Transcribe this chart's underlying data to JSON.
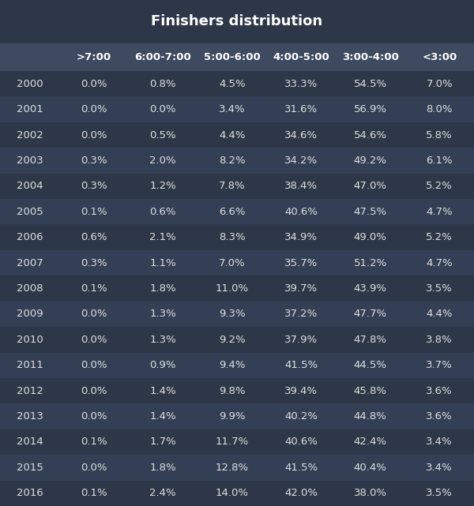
{
  "title": "Finishers distribution",
  "columns": [
    ">7:00",
    "6:00-7:00",
    "5:00-6:00",
    "4:00-5:00",
    "3:00-4:00",
    "<3:00"
  ],
  "rows": [
    {
      "year": 2000,
      "values": [
        "0.0%",
        "0.8%",
        "4.5%",
        "33.3%",
        "54.5%",
        "7.0%"
      ]
    },
    {
      "year": 2001,
      "values": [
        "0.0%",
        "0.0%",
        "3.4%",
        "31.6%",
        "56.9%",
        "8.0%"
      ]
    },
    {
      "year": 2002,
      "values": [
        "0.0%",
        "0.5%",
        "4.4%",
        "34.6%",
        "54.6%",
        "5.8%"
      ]
    },
    {
      "year": 2003,
      "values": [
        "0.3%",
        "2.0%",
        "8.2%",
        "34.2%",
        "49.2%",
        "6.1%"
      ]
    },
    {
      "year": 2004,
      "values": [
        "0.3%",
        "1.2%",
        "7.8%",
        "38.4%",
        "47.0%",
        "5.2%"
      ]
    },
    {
      "year": 2005,
      "values": [
        "0.1%",
        "0.6%",
        "6.6%",
        "40.6%",
        "47.5%",
        "4.7%"
      ]
    },
    {
      "year": 2006,
      "values": [
        "0.6%",
        "2.1%",
        "8.3%",
        "34.9%",
        "49.0%",
        "5.2%"
      ]
    },
    {
      "year": 2007,
      "values": [
        "0.3%",
        "1.1%",
        "7.0%",
        "35.7%",
        "51.2%",
        "4.7%"
      ]
    },
    {
      "year": 2008,
      "values": [
        "0.1%",
        "1.8%",
        "11.0%",
        "39.7%",
        "43.9%",
        "3.5%"
      ]
    },
    {
      "year": 2009,
      "values": [
        "0.0%",
        "1.3%",
        "9.3%",
        "37.2%",
        "47.7%",
        "4.4%"
      ]
    },
    {
      "year": 2010,
      "values": [
        "0.0%",
        "1.3%",
        "9.2%",
        "37.9%",
        "47.8%",
        "3.8%"
      ]
    },
    {
      "year": 2011,
      "values": [
        "0.0%",
        "0.9%",
        "9.4%",
        "41.5%",
        "44.5%",
        "3.7%"
      ]
    },
    {
      "year": 2012,
      "values": [
        "0.0%",
        "1.4%",
        "9.8%",
        "39.4%",
        "45.8%",
        "3.6%"
      ]
    },
    {
      "year": 2013,
      "values": [
        "0.0%",
        "1.4%",
        "9.9%",
        "40.2%",
        "44.8%",
        "3.6%"
      ]
    },
    {
      "year": 2014,
      "values": [
        "0.1%",
        "1.7%",
        "11.7%",
        "40.6%",
        "42.4%",
        "3.4%"
      ]
    },
    {
      "year": 2015,
      "values": [
        "0.0%",
        "1.8%",
        "12.8%",
        "41.5%",
        "40.4%",
        "3.4%"
      ]
    },
    {
      "year": 2016,
      "values": [
        "0.1%",
        "2.4%",
        "14.0%",
        "42.0%",
        "38.0%",
        "3.5%"
      ]
    }
  ],
  "bg_color": "#2d3748",
  "header_bg_color": "#3d4a60",
  "row_bg_even": "#2d3748",
  "row_bg_odd": "#333f54",
  "text_color": "#e0e0e0",
  "title_color": "#ffffff",
  "header_text_color": "#ffffff",
  "title_fontsize": 13,
  "header_fontsize": 9.5,
  "cell_fontsize": 9.5,
  "fig_width": 6.0,
  "fig_height": 6.41,
  "dpi": 100
}
